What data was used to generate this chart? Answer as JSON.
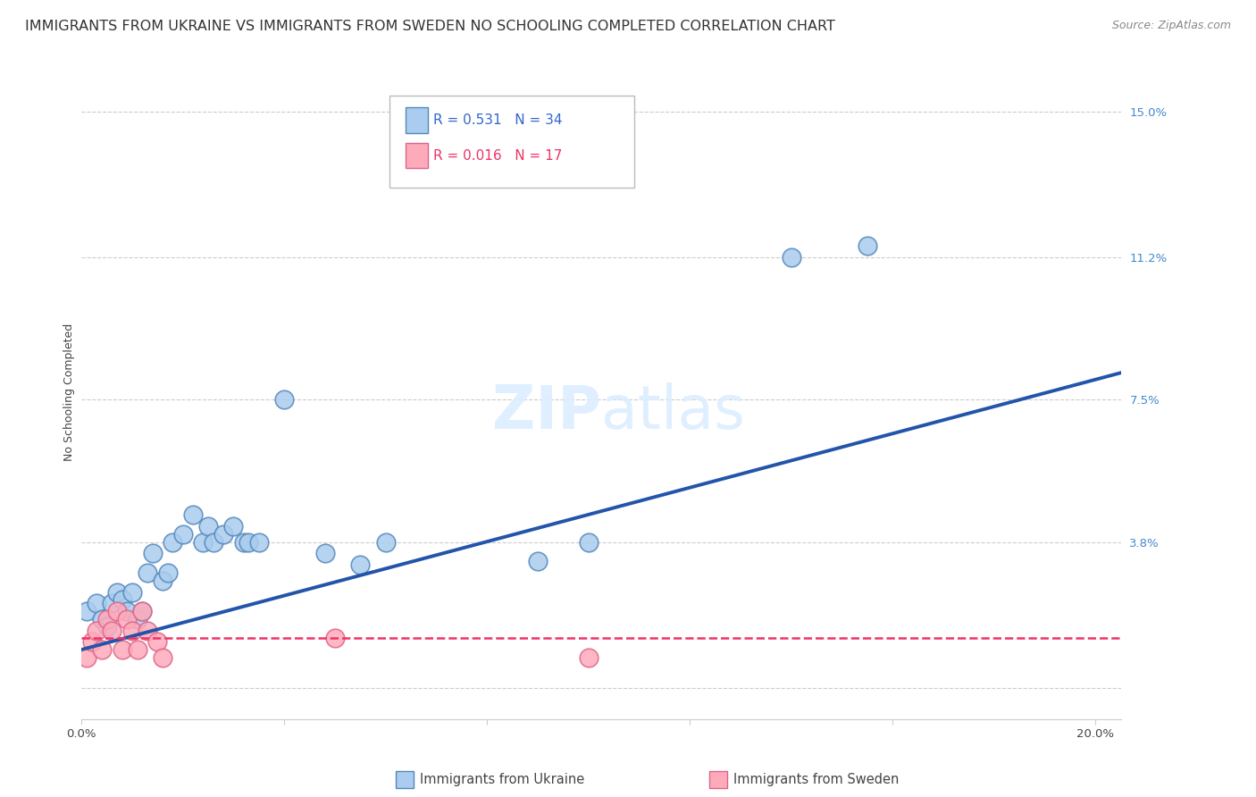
{
  "title": "IMMIGRANTS FROM UKRAINE VS IMMIGRANTS FROM SWEDEN NO SCHOOLING COMPLETED CORRELATION CHART",
  "source": "Source: ZipAtlas.com",
  "ylabel": "No Schooling Completed",
  "xlim": [
    0.0,
    0.205
  ],
  "ylim": [
    -0.008,
    0.162
  ],
  "xticks": [
    0.0,
    0.04,
    0.08,
    0.12,
    0.16,
    0.2
  ],
  "xticklabels": [
    "0.0%",
    "",
    "",
    "",
    "",
    "20.0%"
  ],
  "ytick_positions": [
    0.0,
    0.038,
    0.075,
    0.112,
    0.15
  ],
  "yticklabels": [
    "",
    "3.8%",
    "7.5%",
    "11.2%",
    "15.0%"
  ],
  "legend1_r": "0.531",
  "legend1_n": "34",
  "legend2_r": "0.016",
  "legend2_n": "17",
  "ukraine_color": "#aaccee",
  "ukraine_edge": "#5588bb",
  "sweden_color": "#ffaabb",
  "sweden_edge": "#dd6688",
  "trendline_ukraine_color": "#2255aa",
  "trendline_sweden_color": "#ee3366",
  "watermark_color": "#ddeeff",
  "ukraine_scatter_x": [
    0.001,
    0.003,
    0.004,
    0.005,
    0.006,
    0.007,
    0.008,
    0.009,
    0.01,
    0.011,
    0.012,
    0.013,
    0.014,
    0.016,
    0.017,
    0.018,
    0.02,
    0.022,
    0.024,
    0.025,
    0.026,
    0.028,
    0.03,
    0.032,
    0.033,
    0.035,
    0.04,
    0.048,
    0.055,
    0.06,
    0.09,
    0.1,
    0.14,
    0.155
  ],
  "ukraine_scatter_y": [
    0.02,
    0.022,
    0.018,
    0.016,
    0.022,
    0.025,
    0.023,
    0.02,
    0.025,
    0.018,
    0.02,
    0.03,
    0.035,
    0.028,
    0.03,
    0.038,
    0.04,
    0.045,
    0.038,
    0.042,
    0.038,
    0.04,
    0.042,
    0.038,
    0.038,
    0.038,
    0.075,
    0.035,
    0.032,
    0.038,
    0.033,
    0.038,
    0.112,
    0.115
  ],
  "sweden_scatter_x": [
    0.001,
    0.002,
    0.003,
    0.004,
    0.005,
    0.006,
    0.007,
    0.008,
    0.009,
    0.01,
    0.011,
    0.012,
    0.013,
    0.015,
    0.016,
    0.05,
    0.1
  ],
  "sweden_scatter_y": [
    0.008,
    0.012,
    0.015,
    0.01,
    0.018,
    0.015,
    0.02,
    0.01,
    0.018,
    0.015,
    0.01,
    0.02,
    0.015,
    0.012,
    0.008,
    0.013,
    0.008
  ],
  "ukraine_trend_x": [
    0.0,
    0.205
  ],
  "ukraine_trend_y": [
    0.01,
    0.082
  ],
  "sweden_trend_x": [
    0.0,
    0.205
  ],
  "sweden_trend_y": [
    0.013,
    0.013
  ],
  "grid_color": "#cccccc",
  "bg_color": "#ffffff",
  "title_fontsize": 11.5,
  "axis_fontsize": 9,
  "tick_fontsize": 9.5,
  "watermark_fontsize": 48,
  "legend_fontsize": 11
}
